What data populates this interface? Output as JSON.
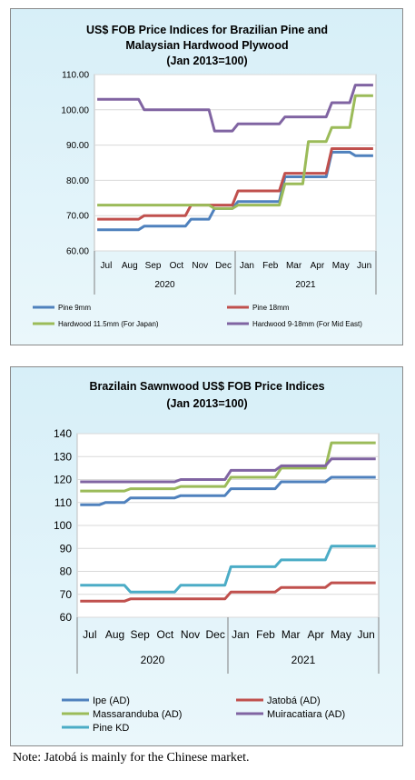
{
  "chart_data": [
    {
      "type": "line",
      "title": "US$ FOB Price Indices for Brazilian Pine and Malaysian Hardwood Plywood (Jan 2013=100)",
      "title_lines": [
        "US$ FOB Price Indices for Brazilian  Pine and",
        "Malaysian Hardwood Plywood",
        "(Jan 2013=100)"
      ],
      "categories": [
        "Jul",
        "Aug",
        "Sep",
        "Oct",
        "Nov",
        "Dec",
        "Jan",
        "Feb",
        "Mar",
        "Apr",
        "May",
        "Jun"
      ],
      "year_groups": [
        {
          "label": "2020",
          "start": 0,
          "end": 5
        },
        {
          "label": "2021",
          "start": 6,
          "end": 11
        }
      ],
      "ylim": [
        60,
        110
      ],
      "yticks": [
        60,
        70,
        80,
        90,
        100,
        110
      ],
      "ytick_labels": [
        "60.00",
        "70.00",
        "80.00",
        "90.00",
        "100.00",
        "110.00"
      ],
      "grid": "horizontal",
      "legend_position": "bottom",
      "series": [
        {
          "name": "Pine 9mm",
          "color": "#4f81bd",
          "values": [
            66,
            66,
            67,
            67,
            69,
            72,
            74,
            74,
            81,
            81,
            88,
            87
          ]
        },
        {
          "name": "Pine 18mm",
          "color": "#c0504d",
          "values": [
            69,
            69,
            70,
            70,
            73,
            73,
            77,
            77,
            82,
            82,
            89,
            89
          ]
        },
        {
          "name": "Hardwood 11.5mm (For Japan)",
          "color": "#9bbb59",
          "values": [
            73,
            73,
            73,
            73,
            73,
            72,
            73,
            73,
            79,
            91,
            95,
            104
          ]
        },
        {
          "name": "Hardwood 9-18mm (For Mid East)",
          "color": "#8064a2",
          "values": [
            103,
            103,
            100,
            100,
            100,
            94,
            96,
            96,
            98,
            98,
            102,
            107
          ]
        }
      ]
    },
    {
      "type": "line",
      "title": "Brazilain Sawnwood US$ FOB Price Indices (Jan 2013=100)",
      "title_lines": [
        "Brazilain Sawnwood US$ FOB Price Indices",
        "(Jan 2013=100)"
      ],
      "categories": [
        "Jul",
        "Aug",
        "Sep",
        "Oct",
        "Nov",
        "Dec",
        "Jan",
        "Feb",
        "Mar",
        "Apr",
        "May",
        "Jun"
      ],
      "year_groups": [
        {
          "label": "2020",
          "start": 0,
          "end": 5
        },
        {
          "label": "2021",
          "start": 6,
          "end": 11
        }
      ],
      "ylim": [
        60,
        140
      ],
      "yticks": [
        60,
        70,
        80,
        90,
        100,
        110,
        120,
        130,
        140
      ],
      "ytick_labels": [
        "60",
        "70",
        "80",
        "90",
        "100",
        "110",
        "120",
        "130",
        "140"
      ],
      "grid": "horizontal",
      "legend_position": "bottom",
      "series": [
        {
          "name": "Ipe (AD)",
          "color": "#4f81bd",
          "values": [
            109,
            110,
            112,
            112,
            113,
            113,
            116,
            116,
            119,
            119,
            121,
            121
          ]
        },
        {
          "name": "Jatobá (AD)",
          "color": "#c0504d",
          "values": [
            67,
            67,
            68,
            68,
            68,
            68,
            71,
            71,
            73,
            73,
            75,
            75
          ]
        },
        {
          "name": "Massaranduba (AD)",
          "color": "#9bbb59",
          "values": [
            115,
            115,
            116,
            116,
            117,
            117,
            121,
            121,
            125,
            125,
            136,
            136
          ]
        },
        {
          "name": "Muiracatiara (AD)",
          "color": "#8064a2",
          "values": [
            119,
            119,
            119,
            119,
            120,
            120,
            124,
            124,
            126,
            126,
            129,
            129
          ]
        },
        {
          "name": "Pine KD",
          "color": "#4bacc6",
          "values": [
            74,
            74,
            71,
            71,
            74,
            74,
            82,
            82,
            85,
            85,
            91,
            91
          ]
        }
      ]
    }
  ],
  "note": "Note: Jatobá is mainly for the Chinese market."
}
